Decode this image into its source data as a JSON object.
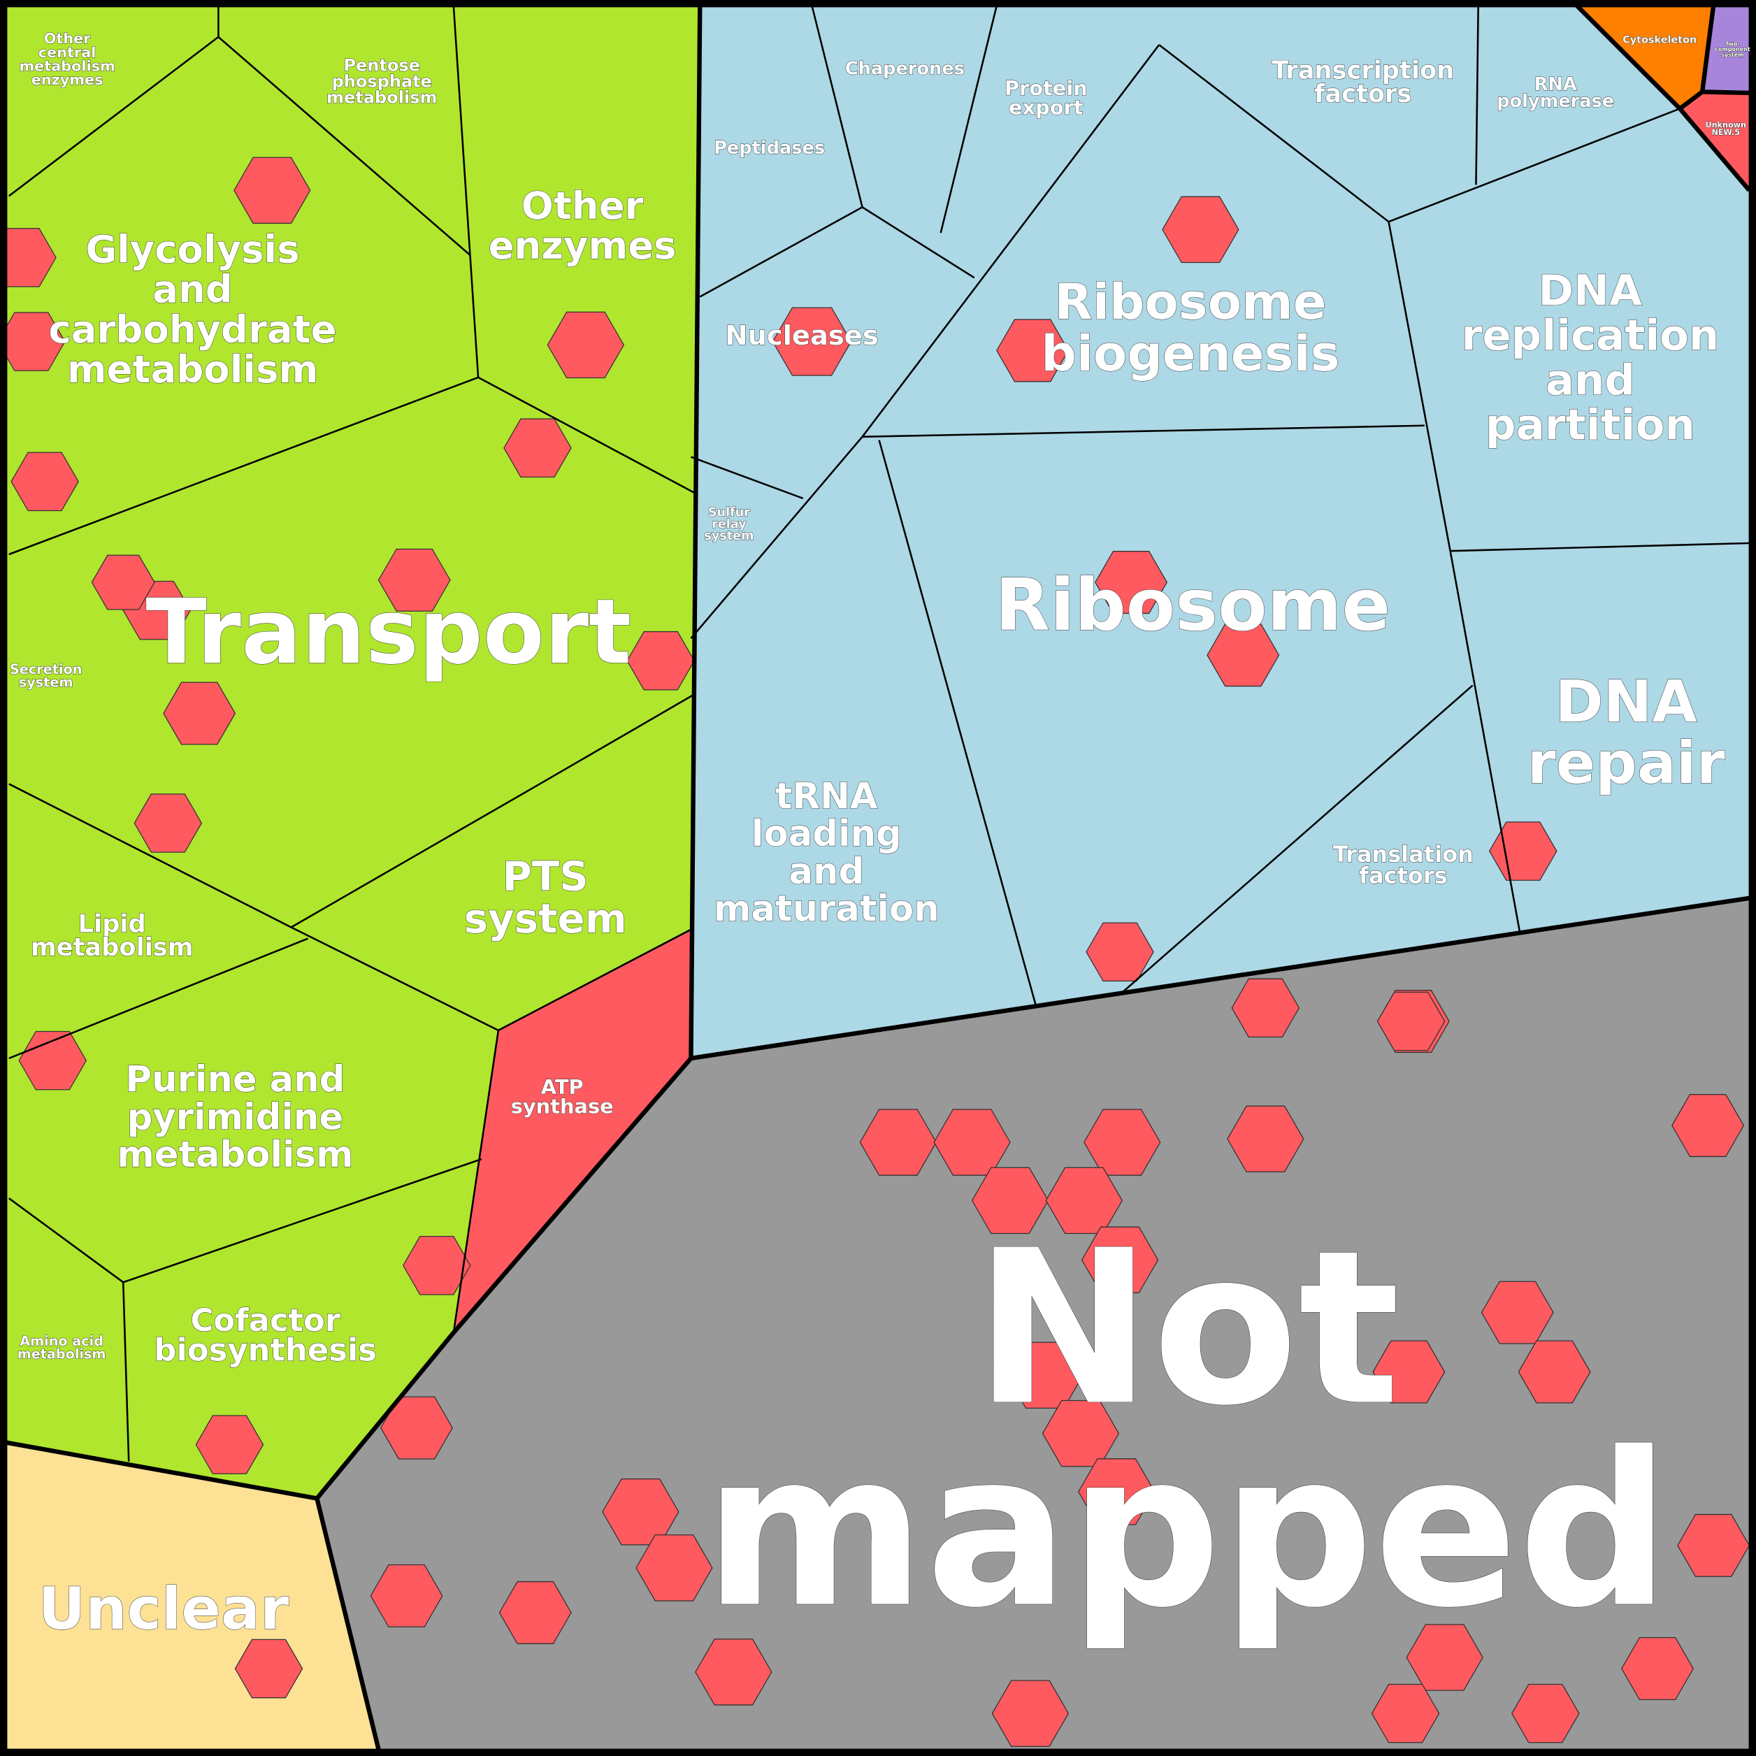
{
  "colors": {
    "metabolism": "#b0e62e",
    "genetic_information": "#add8e6",
    "not_mapped": "#999999",
    "unclear": "#fde195",
    "cytoskeleton": "#ff8000",
    "two_component": "#a785db",
    "highlight": "#ff5a5f",
    "border": "#000000"
  },
  "labels": {
    "other_central": [
      "Other",
      "central",
      "metabolism",
      "enzymes"
    ],
    "pentose": [
      "Pentose",
      "phosphate",
      "metabolism"
    ],
    "glycolysis": [
      "Glycolysis",
      "and",
      "carbohydrate",
      "metabolism"
    ],
    "other_enzymes": [
      "Other",
      "enzymes"
    ],
    "transport": [
      "Transport"
    ],
    "secretion": [
      "Secretion",
      "system"
    ],
    "lipid": [
      "Lipid",
      "metabolism"
    ],
    "pts": [
      "PTS",
      "system"
    ],
    "purine": [
      "Purine and",
      "pyrimidine",
      "metabolism"
    ],
    "atp": [
      "ATP",
      "synthase"
    ],
    "amino": [
      "Amino acid",
      "metabolism"
    ],
    "cofactor": [
      "Cofactor",
      "biosynthesis"
    ],
    "unclear": [
      "Unclear"
    ],
    "peptidases": [
      "Peptidases"
    ],
    "chaperones": [
      "Chaperones"
    ],
    "protein_export": [
      "Protein",
      "export"
    ],
    "transcription": [
      "Transcription",
      "factors"
    ],
    "rna_pol": [
      "RNA",
      "polymerase"
    ],
    "cytoskeleton": [
      "Cytoskeleton"
    ],
    "two_component": [
      "Two-",
      "component",
      "system"
    ],
    "unknown": [
      "Unknown",
      "NEW.5"
    ],
    "nucleases": [
      "Nucleases"
    ],
    "ribosome_biogenesis": [
      "Ribosome",
      "biogenesis"
    ],
    "dna_replication": [
      "DNA",
      "replication",
      "and",
      "partition"
    ],
    "sulfur": [
      "Sulfur",
      "relay",
      "system"
    ],
    "ribosome": [
      "Ribosome"
    ],
    "dna_repair": [
      "DNA",
      "repair"
    ],
    "trna": [
      "tRNA",
      "loading",
      "and",
      "maturation"
    ],
    "translation": [
      "Translation",
      "factors"
    ],
    "not_mapped": [
      "Not",
      "mapped"
    ]
  }
}
